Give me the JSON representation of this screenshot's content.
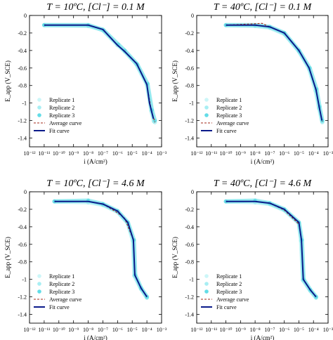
{
  "chart_data": [
    {
      "type": "line",
      "title": "T = 10ºC, [Cl⁻] = 0.1 M",
      "xlabel": "i (A/cm²)",
      "ylabel": "E_app (V_SCE)",
      "x_scale": "log",
      "xlim": [
        1e-12,
        0.001
      ],
      "ylim": [
        -1.5,
        0.0
      ],
      "x_tick_labels": [
        "10⁻¹²",
        "10⁻¹¹",
        "10⁻¹⁰",
        "10⁻⁹",
        "10⁻⁸",
        "10⁻⁷",
        "10⁻⁶",
        "10⁻⁵",
        "10⁻⁴",
        "10⁻³"
      ],
      "y_tick_labels": [
        "0",
        "-0.2",
        "-0.4",
        "-0.6",
        "-0.8",
        "-1",
        "-1.2",
        "-1.4"
      ],
      "y_ticks": [
        0,
        -0.2,
        -0.4,
        -0.6,
        -0.8,
        -1.0,
        -1.2,
        -1.4
      ],
      "legend": {
        "placement": "bottom-left"
      },
      "series": [
        {
          "name": "Replicate 1",
          "style": "marker",
          "color": "#ccf6f8",
          "x": [
            1e-11,
            1e-08,
            1e-07,
            1e-06,
            3e-06,
            2e-05,
            0.0001,
            0.0002,
            0.00035
          ],
          "y": [
            -0.11,
            -0.11,
            -0.16,
            -0.33,
            -0.4,
            -0.55,
            -0.78,
            -1.08,
            -1.22
          ]
        },
        {
          "name": "Replicate 2",
          "style": "marker",
          "color": "#a8eef3",
          "x": [
            1e-11,
            1e-08,
            9e-08,
            1e-06,
            3e-06,
            1.8e-05,
            0.0001,
            0.0002,
            0.0003
          ],
          "y": [
            -0.11,
            -0.12,
            -0.16,
            -0.34,
            -0.41,
            -0.55,
            -0.79,
            -1.09,
            -1.21
          ]
        },
        {
          "name": "Replicate 3",
          "style": "marker",
          "color": "#63dce7",
          "x": [
            1e-11,
            1e-08,
            1.1e-07,
            1.1e-06,
            3e-06,
            2.2e-05,
            0.00011,
            0.00022,
            0.00035
          ],
          "y": [
            -0.11,
            -0.11,
            -0.17,
            -0.33,
            -0.4,
            -0.56,
            -0.78,
            -1.08,
            -1.2
          ]
        },
        {
          "name": "Average curve",
          "style": "dashed",
          "color": "#a32a1a",
          "x": [
            1e-11,
            1e-08,
            1e-07,
            1e-06,
            3e-06,
            2e-05,
            0.0001,
            0.0002,
            0.00035
          ],
          "y": [
            -0.11,
            -0.11,
            -0.16,
            -0.34,
            -0.41,
            -0.55,
            -0.79,
            -1.08,
            -1.22
          ]
        },
        {
          "name": "Fit curve",
          "style": "solid",
          "color": "#0a1a8a",
          "x": [
            1e-11,
            1e-08,
            1e-07,
            1e-06,
            3e-06,
            2e-05,
            0.0001,
            0.00015,
            0.00028
          ],
          "y": [
            -0.11,
            -0.11,
            -0.16,
            -0.34,
            -0.41,
            -0.55,
            -0.79,
            -1.0,
            -1.18
          ]
        }
      ]
    },
    {
      "type": "line",
      "title": "T = 40ºC, [Cl⁻] = 0.1 M",
      "xlabel": "i (A/cm²)",
      "ylabel": "E_app (V_SCE)",
      "x_scale": "log",
      "xlim": [
        1e-12,
        0.001
      ],
      "ylim": [
        -1.5,
        0.0
      ],
      "x_tick_labels": [
        "10⁻¹²",
        "10⁻¹¹",
        "10⁻¹⁰",
        "10⁻⁹",
        "10⁻⁸",
        "10⁻⁷",
        "10⁻⁶",
        "10⁻⁵",
        "10⁻⁴",
        "10⁻³"
      ],
      "y_tick_labels": [
        "0",
        "-0.2",
        "-0.4",
        "-0.6",
        "-0.8",
        "-1",
        "-1.2",
        "-1.4"
      ],
      "y_ticks": [
        0,
        -0.2,
        -0.4,
        -0.6,
        -0.8,
        -1.0,
        -1.2,
        -1.4
      ],
      "legend": {
        "placement": "bottom-left"
      },
      "series": [
        {
          "name": "Replicate 1",
          "style": "marker",
          "color": "#ccf6f8",
          "x": [
            1e-10,
            1e-08,
            1e-07,
            1e-06,
            1e-05,
            5e-05,
            0.00015,
            0.00025,
            0.0004
          ],
          "y": [
            -0.11,
            -0.11,
            -0.13,
            -0.2,
            -0.4,
            -0.6,
            -0.85,
            -1.05,
            -1.22
          ]
        },
        {
          "name": "Replicate 2",
          "style": "marker",
          "color": "#a8eef3",
          "x": [
            1e-10,
            1e-08,
            1e-07,
            1e-06,
            1e-05,
            5e-05,
            0.00014,
            0.00024,
            0.0004
          ],
          "y": [
            -0.11,
            -0.12,
            -0.14,
            -0.21,
            -0.41,
            -0.61,
            -0.86,
            -1.06,
            -1.21
          ]
        },
        {
          "name": "Replicate 3",
          "style": "marker",
          "color": "#63dce7",
          "x": [
            1e-10,
            1e-08,
            1e-07,
            1e-06,
            1e-05,
            5.5e-05,
            0.00016,
            0.00026,
            0.0004
          ],
          "y": [
            -0.11,
            -0.11,
            -0.13,
            -0.2,
            -0.4,
            -0.6,
            -0.84,
            -1.04,
            -1.2
          ]
        },
        {
          "name": "Average curve",
          "style": "dashed",
          "color": "#a32a1a",
          "x": [
            1e-10,
            3e-08,
            1e-07,
            1e-06,
            1e-05,
            5e-05,
            0.00015,
            0.00025,
            0.0004
          ],
          "y": [
            -0.11,
            -0.09,
            -0.13,
            -0.2,
            -0.4,
            -0.6,
            -0.85,
            -1.05,
            -1.21
          ]
        },
        {
          "name": "Fit curve",
          "style": "solid",
          "color": "#0a1a8a",
          "x": [
            1e-10,
            1e-08,
            1e-07,
            1e-06,
            1e-05,
            5e-05,
            0.00015,
            0.00025,
            0.00038
          ],
          "y": [
            -0.11,
            -0.11,
            -0.13,
            -0.2,
            -0.4,
            -0.6,
            -0.85,
            -1.05,
            -1.2
          ]
        }
      ]
    },
    {
      "type": "line",
      "title": "T = 10ºC, [Cl⁻] = 4.6 M",
      "xlabel": "i (A/cm²)",
      "ylabel": "E_app (V_SCE)",
      "x_scale": "log",
      "xlim": [
        1e-12,
        0.001
      ],
      "ylim": [
        -1.5,
        0.0
      ],
      "x_tick_labels": [
        "10⁻¹²",
        "10⁻¹¹",
        "10⁻¹⁰",
        "10⁻⁹",
        "10⁻⁸",
        "10⁻⁷",
        "10⁻⁶",
        "10⁻⁵",
        "10⁻⁴",
        "10⁻³"
      ],
      "y_tick_labels": [
        "0",
        "-0.2",
        "-0.4",
        "-0.6",
        "-0.8",
        "-1",
        "-1.2",
        "-1.4"
      ],
      "y_ticks": [
        0,
        -0.2,
        -0.4,
        -0.6,
        -0.8,
        -1.0,
        -1.2,
        -1.4
      ],
      "legend": {
        "placement": "bottom-left"
      },
      "series": [
        {
          "name": "Replicate 1",
          "style": "marker",
          "color": "#ccf6f8",
          "x": [
            5e-11,
            1e-08,
            1e-07,
            1e-06,
            5e-06,
            1.2e-05,
            1.5e-05,
            4e-05,
            0.0001
          ],
          "y": [
            -0.11,
            -0.11,
            -0.14,
            -0.22,
            -0.35,
            -0.55,
            -0.95,
            -1.1,
            -1.2
          ]
        },
        {
          "name": "Replicate 2",
          "style": "marker",
          "color": "#a8eef3",
          "x": [
            5e-11,
            1e-08,
            1e-07,
            1e-06,
            5e-06,
            1.1e-05,
            1.4e-05,
            4e-05,
            0.0001
          ],
          "y": [
            -0.11,
            -0.12,
            -0.15,
            -0.23,
            -0.36,
            -0.56,
            -0.96,
            -1.11,
            -1.21
          ]
        },
        {
          "name": "Replicate 3",
          "style": "marker",
          "color": "#63dce7",
          "x": [
            5e-11,
            1e-08,
            1e-07,
            1e-06,
            5e-06,
            1.3e-05,
            1.6e-05,
            4e-05,
            0.0001
          ],
          "y": [
            -0.11,
            -0.1,
            -0.14,
            -0.22,
            -0.35,
            -0.55,
            -0.95,
            -1.1,
            -1.2
          ]
        },
        {
          "name": "Average curve",
          "style": "dashed",
          "color": "#a32a1a",
          "x": [
            5e-11,
            1e-08,
            1e-07,
            1e-06,
            3e-06,
            1.2e-05,
            1.5e-05,
            4e-05,
            0.0001
          ],
          "y": [
            -0.11,
            -0.11,
            -0.14,
            -0.24,
            -0.3,
            -0.55,
            -0.95,
            -1.1,
            -1.2
          ]
        },
        {
          "name": "Fit curve",
          "style": "solid",
          "color": "#0a1a8a",
          "x": [
            5e-11,
            1e-08,
            1e-07,
            1e-06,
            5e-06,
            1.2e-05,
            1.5e-05,
            4e-05,
            0.0001
          ],
          "y": [
            -0.11,
            -0.11,
            -0.14,
            -0.22,
            -0.35,
            -0.55,
            -0.95,
            -1.1,
            -1.2
          ]
        }
      ]
    },
    {
      "type": "line",
      "title": "T = 40ºC, [Cl⁻] = 4.6 M",
      "xlabel": "i (A/cm²)",
      "ylabel": "E_app (V_SCE)",
      "x_scale": "log",
      "xlim": [
        1e-12,
        0.001
      ],
      "ylim": [
        -1.5,
        0.0
      ],
      "x_tick_labels": [
        "10⁻¹²",
        "10⁻¹¹",
        "10⁻¹⁰",
        "10⁻⁹",
        "10⁻⁸",
        "10⁻⁷",
        "10⁻⁶",
        "10⁻⁵",
        "10⁻⁴",
        "10⁻³"
      ],
      "y_tick_labels": [
        "0",
        "-0.2",
        "-0.4",
        "-0.6",
        "-0.8",
        "-1",
        "-1.2",
        "-1.4"
      ],
      "y_ticks": [
        0,
        -0.2,
        -0.4,
        -0.6,
        -0.8,
        -1.0,
        -1.2,
        -1.4
      ],
      "legend": {
        "placement": "bottom-left"
      },
      "series": [
        {
          "name": "Replicate 1",
          "style": "marker",
          "color": "#ccf6f8",
          "x": [
            1e-10,
            1e-08,
            1e-07,
            1e-06,
            1e-05,
            1.5e-05,
            2e-05,
            6e-05,
            0.00015
          ],
          "y": [
            -0.11,
            -0.11,
            -0.13,
            -0.2,
            -0.35,
            -0.55,
            -1.0,
            -1.12,
            -1.2
          ]
        },
        {
          "name": "Replicate 2",
          "style": "marker",
          "color": "#a8eef3",
          "x": [
            1e-10,
            1e-08,
            1e-07,
            1e-06,
            1e-05,
            1.4e-05,
            1.9e-05,
            6e-05,
            0.00015
          ],
          "y": [
            -0.11,
            -0.12,
            -0.14,
            -0.21,
            -0.36,
            -0.56,
            -1.01,
            -1.13,
            -1.21
          ]
        },
        {
          "name": "Replicate 3",
          "style": "marker",
          "color": "#63dce7",
          "x": [
            1e-10,
            1e-08,
            1e-07,
            1e-06,
            1e-05,
            1.6e-05,
            2.1e-05,
            6e-05,
            0.00015
          ],
          "y": [
            -0.11,
            -0.1,
            -0.13,
            -0.2,
            -0.35,
            -0.55,
            -1.0,
            -1.12,
            -1.2
          ]
        },
        {
          "name": "Average curve",
          "style": "dashed",
          "color": "#a32a1a",
          "x": [
            1e-10,
            1e-08,
            1e-07,
            1e-06,
            1e-05,
            1.5e-05,
            2e-05,
            6e-05,
            0.00015
          ],
          "y": [
            -0.11,
            -0.11,
            -0.13,
            -0.21,
            -0.37,
            -0.55,
            -1.0,
            -1.12,
            -1.2
          ]
        },
        {
          "name": "Fit curve",
          "style": "solid",
          "color": "#0a1a8a",
          "x": [
            1e-10,
            1e-08,
            1e-07,
            1e-06,
            1e-05,
            1.5e-05,
            2e-05,
            6e-05,
            0.00015
          ],
          "y": [
            -0.11,
            -0.11,
            -0.13,
            -0.2,
            -0.35,
            -0.55,
            -1.0,
            -1.12,
            -1.2
          ]
        }
      ]
    }
  ]
}
